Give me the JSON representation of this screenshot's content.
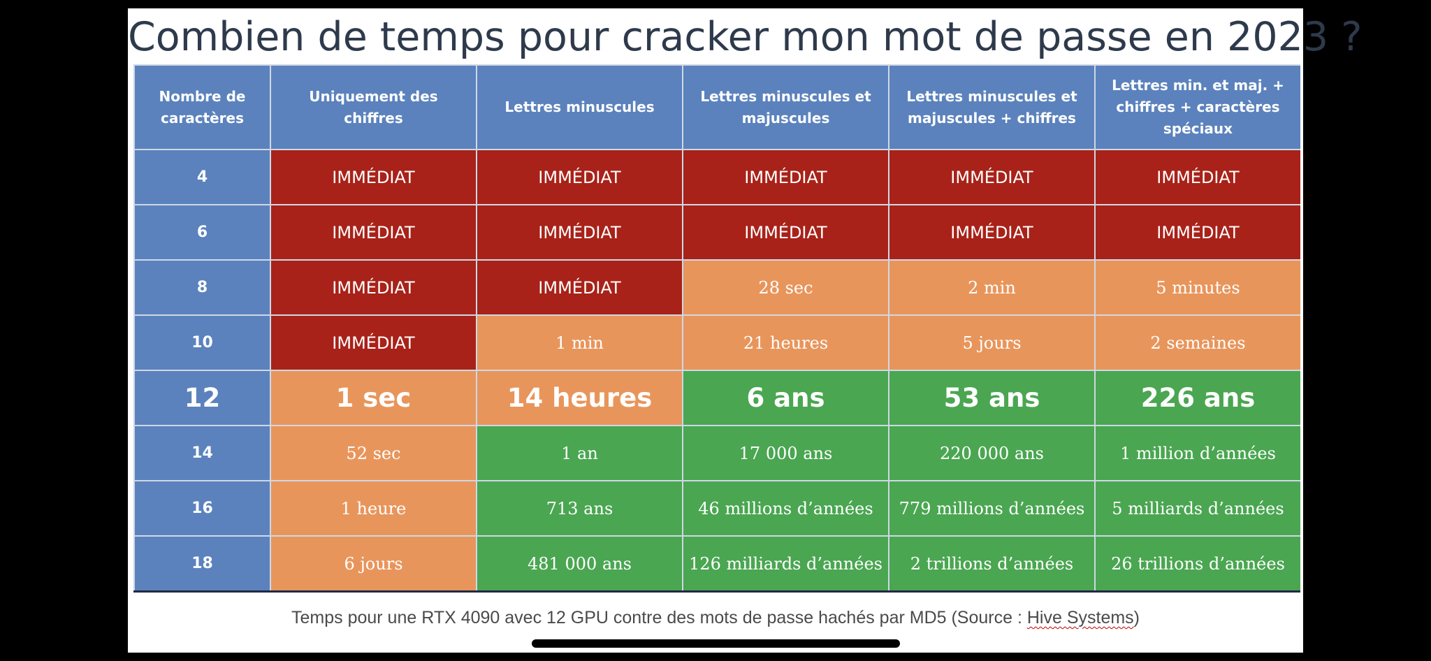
{
  "title": "Combien de temps pour cracker mon mot de passe en 2023 ?",
  "colors": {
    "header": "#5b82bd",
    "immediate": "#a82219",
    "medium": "#e8955b",
    "strong": "#4aa651",
    "title": "#2e3a4c"
  },
  "table": {
    "headers": [
      "Nombre de caractères",
      "Uniquement des chiffres",
      "Lettres minuscules",
      "Lettres minuscules et majuscules",
      "Lettres minuscules et majuscules + chiffres",
      "Lettres min. et maj. + chiffres + caractères spéciaux"
    ],
    "rows": [
      {
        "length": "4",
        "cells": [
          "IMMÉDIAT",
          "IMMÉDIAT",
          "IMMÉDIAT",
          "IMMÉDIAT",
          "IMMÉDIAT"
        ],
        "levels": [
          "red",
          "red",
          "red",
          "red",
          "red"
        ]
      },
      {
        "length": "6",
        "cells": [
          "IMMÉDIAT",
          "IMMÉDIAT",
          "IMMÉDIAT",
          "IMMÉDIAT",
          "IMMÉDIAT"
        ],
        "levels": [
          "red",
          "red",
          "red",
          "red",
          "red"
        ]
      },
      {
        "length": "8",
        "cells": [
          "IMMÉDIAT",
          "IMMÉDIAT",
          "28 sec",
          "2 min",
          "5 minutes"
        ],
        "levels": [
          "red",
          "red",
          "orange",
          "orange",
          "orange"
        ]
      },
      {
        "length": "10",
        "cells": [
          "IMMÉDIAT",
          "1 min",
          "21 heures",
          "5 jours",
          "2 semaines"
        ],
        "levels": [
          "red",
          "orange",
          "orange",
          "orange",
          "orange"
        ]
      },
      {
        "length": "12",
        "cells": [
          "1 sec",
          "14 heures",
          "6 ans",
          "53 ans",
          "226 ans"
        ],
        "levels": [
          "orange",
          "orange",
          "green",
          "green",
          "green"
        ]
      },
      {
        "length": "14",
        "cells": [
          "52 sec",
          "1 an",
          "17 000 ans",
          "220 000 ans",
          "1 million d’années"
        ],
        "levels": [
          "orange",
          "green",
          "green",
          "green",
          "green"
        ]
      },
      {
        "length": "16",
        "cells": [
          "1 heure",
          "713 ans",
          "46 millions d’années",
          "779 millions d’années",
          "5 milliards d’années"
        ],
        "levels": [
          "orange",
          "green",
          "green",
          "green",
          "green"
        ]
      },
      {
        "length": "18",
        "cells": [
          "6 jours",
          "481 000 ans",
          "126 milliards d’années",
          "2 trillions d’années",
          "26 trillions d’années"
        ],
        "levels": [
          "orange",
          "green",
          "green",
          "green",
          "green"
        ]
      }
    ]
  },
  "caption": {
    "prefix": "Temps pour une RTX 4090 avec 12 GPU contre des mots de passe hachés par MD5 (Source : ",
    "source": "Hive Systems",
    "suffix": ")"
  }
}
